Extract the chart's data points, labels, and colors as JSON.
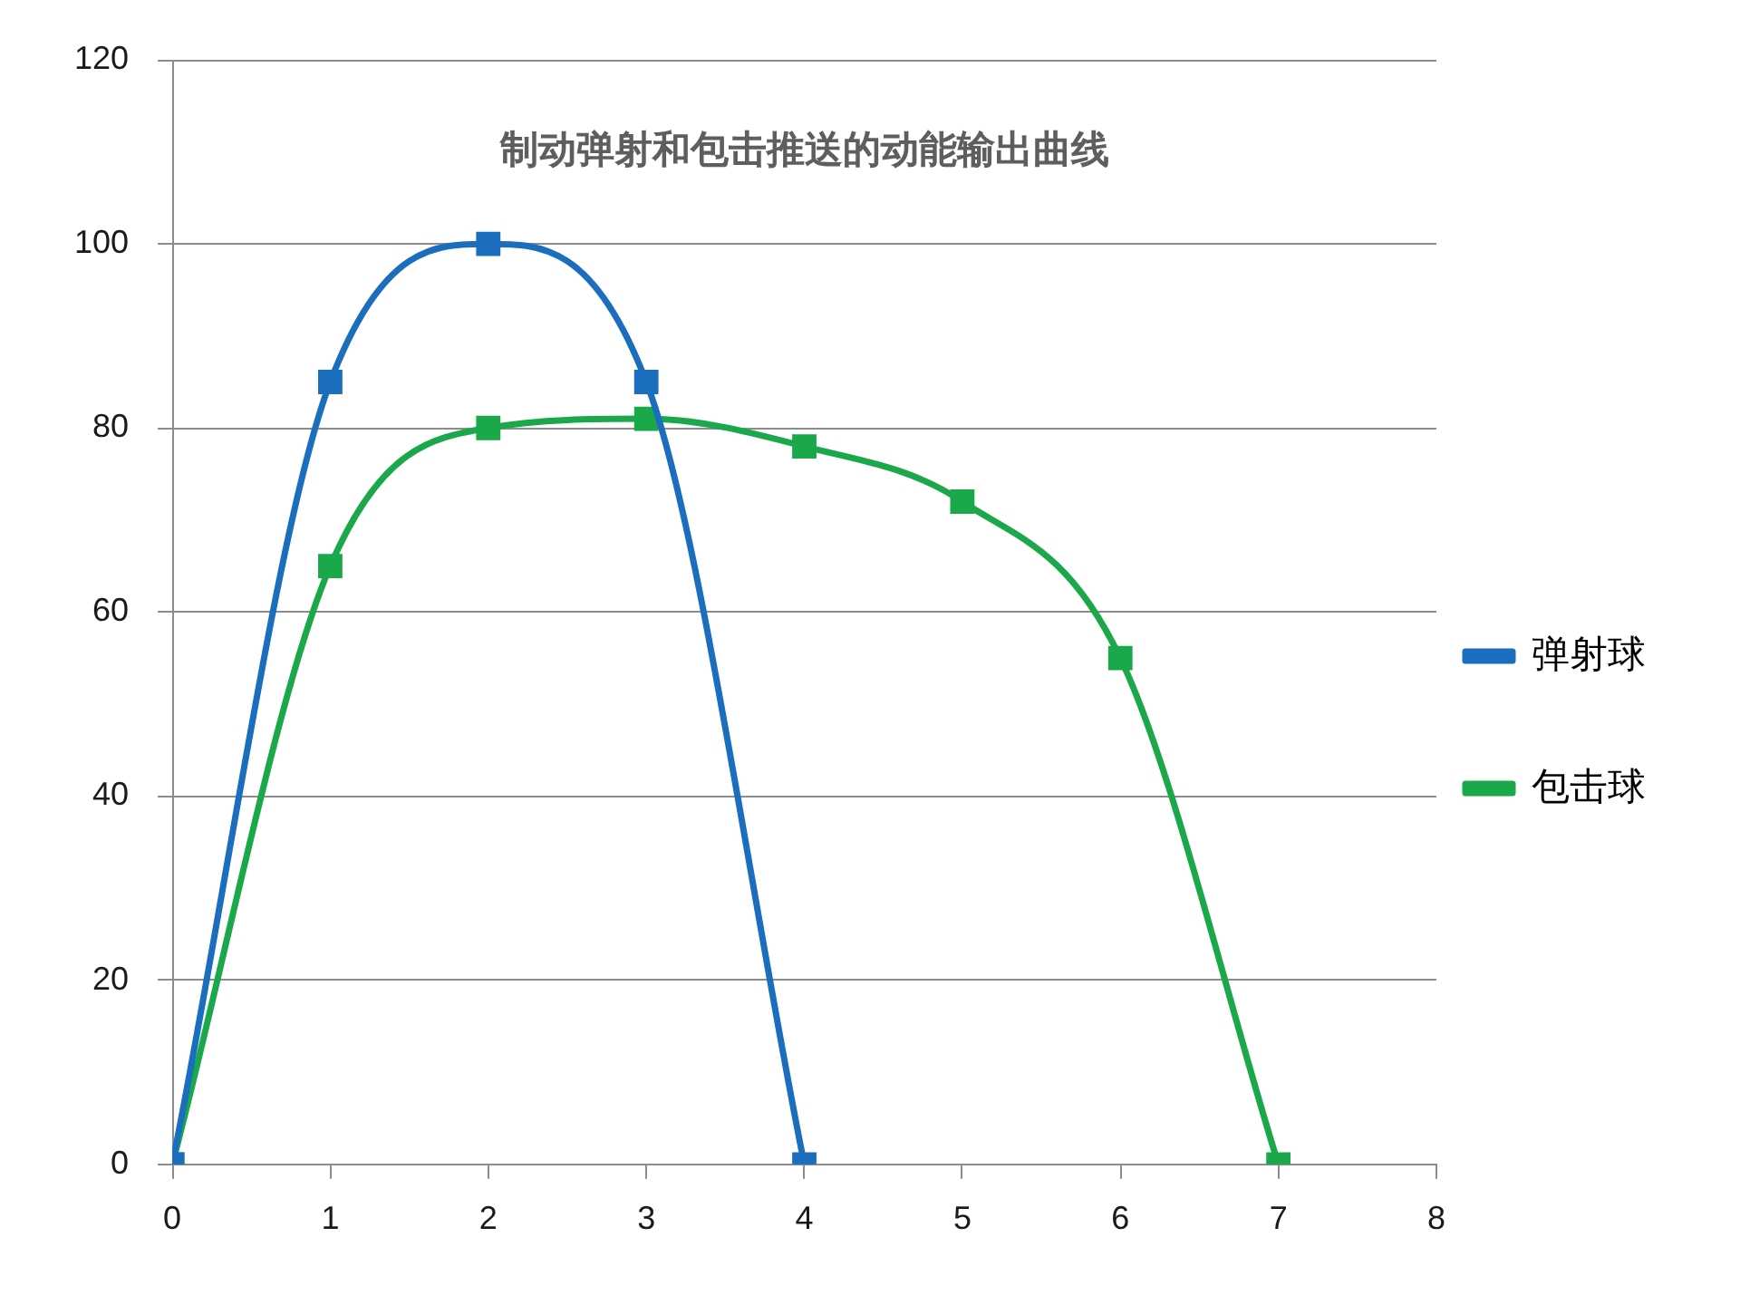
{
  "chart_data": {
    "type": "line",
    "title": "制动弹射和包击推送的动能输出曲线",
    "series": [
      {
        "name": "弹射球",
        "color": "#1b6ebd",
        "x": [
          0,
          1,
          2,
          3,
          4
        ],
        "values": [
          0,
          85,
          100,
          85,
          0
        ]
      },
      {
        "name": "包击球",
        "color": "#1aa84a",
        "x": [
          0,
          1,
          2,
          3,
          4,
          5,
          6,
          7
        ],
        "values": [
          0,
          65,
          80,
          81,
          78,
          72,
          55,
          0
        ]
      }
    ],
    "xlim": [
      0,
      8
    ],
    "xticks": [
      0,
      1,
      2,
      3,
      4,
      5,
      6,
      7,
      8
    ],
    "ylim": [
      0,
      120
    ],
    "yticks": [
      0,
      20,
      40,
      60,
      80,
      100,
      120
    ],
    "grid": "y",
    "legend": "right",
    "marker": "square",
    "line_style": "solid"
  }
}
